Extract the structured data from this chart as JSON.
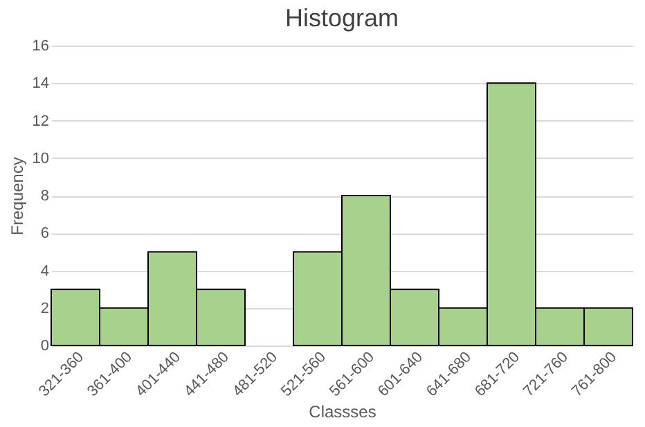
{
  "chart_data": {
    "type": "bar",
    "title": "Histogram",
    "xlabel": "Classses",
    "ylabel": "Frequency",
    "categories": [
      "321-360",
      "361-400",
      "401-440",
      "441-480",
      "481-520",
      "521-560",
      "561-600",
      "601-640",
      "641-680",
      "681-720",
      "721-760",
      "761-800"
    ],
    "values": [
      3,
      2,
      5,
      3,
      0,
      5,
      8,
      3,
      2,
      14,
      2,
      2
    ],
    "color": "#a9d18e",
    "ylim": [
      0,
      16
    ],
    "yticks": [
      0,
      2,
      4,
      6,
      8,
      10,
      12,
      14,
      16
    ],
    "grid": "y"
  }
}
